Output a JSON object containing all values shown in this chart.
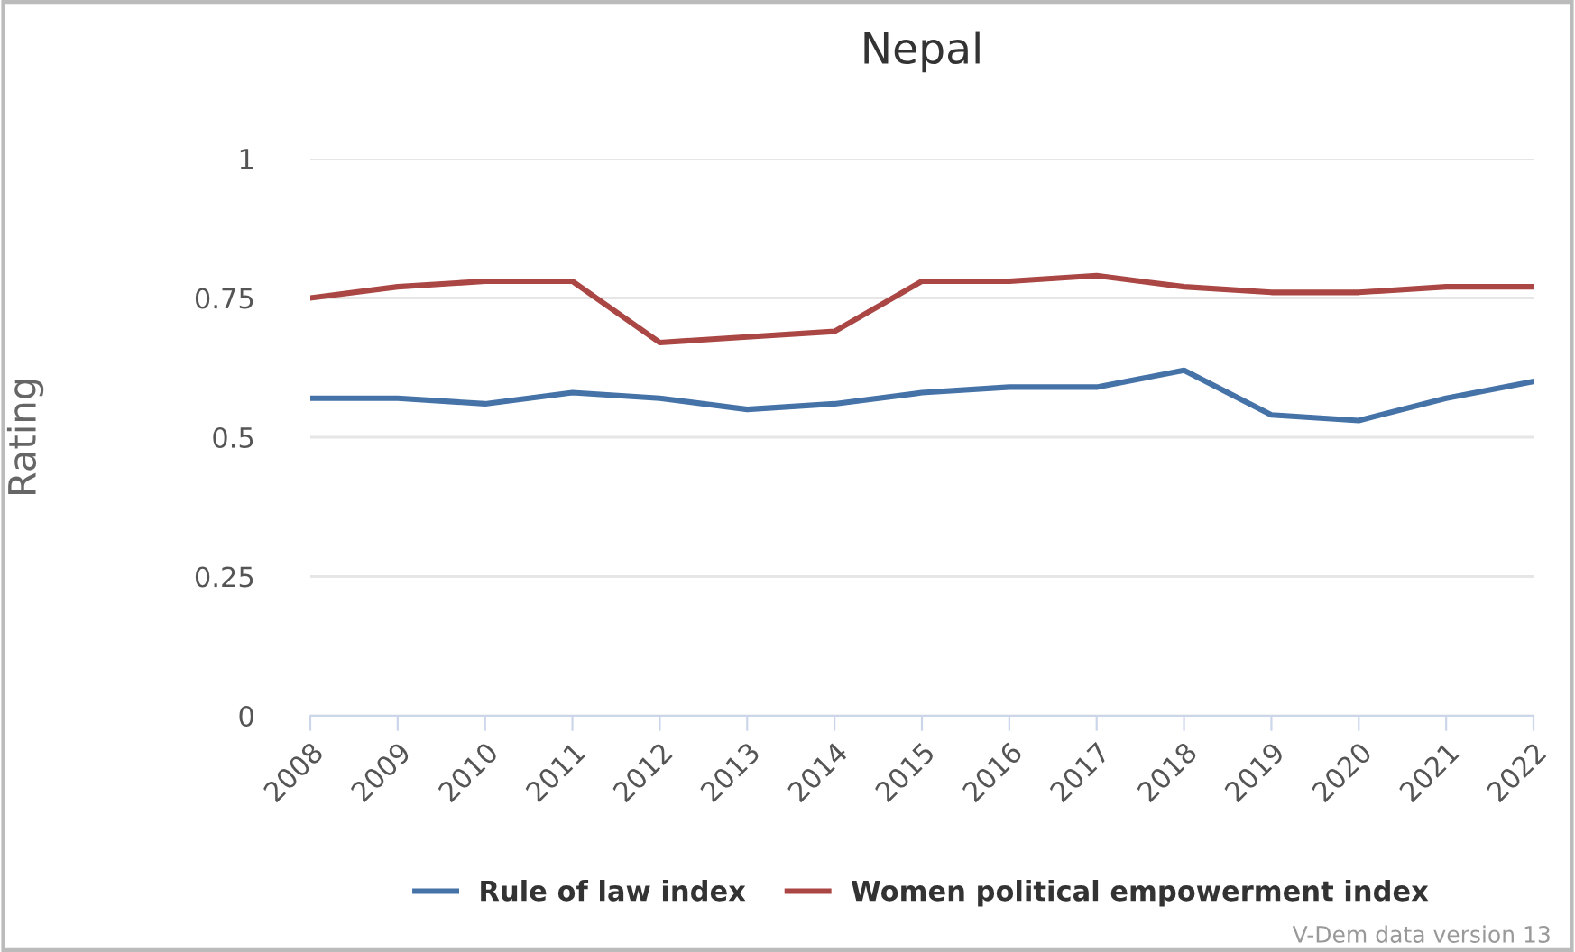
{
  "chart_data": {
    "type": "line",
    "title": "Nepal",
    "ylabel": "Rating",
    "x": [
      2008,
      2009,
      2010,
      2011,
      2012,
      2013,
      2014,
      2015,
      2016,
      2017,
      2018,
      2019,
      2020,
      2021,
      2022
    ],
    "xlim": [
      2008,
      2022
    ],
    "xticks": [
      2008,
      2009,
      2010,
      2011,
      2012,
      2013,
      2014,
      2015,
      2016,
      2017,
      2018,
      2019,
      2020,
      2021,
      2022
    ],
    "ylim": [
      0,
      1
    ],
    "yticks": [
      0,
      0.25,
      0.5,
      0.75,
      1
    ],
    "grid": "y",
    "legend": "bottom",
    "marker": "none",
    "line_style": "solid",
    "series": [
      {
        "name": "Rule of law index",
        "color": "#4572a7",
        "values": [
          0.57,
          0.57,
          0.56,
          0.58,
          0.57,
          0.55,
          0.56,
          0.58,
          0.59,
          0.59,
          0.62,
          0.54,
          0.53,
          0.57,
          0.6
        ]
      },
      {
        "name": "Women political empowerment index",
        "color": "#aa4643",
        "values": [
          0.75,
          0.77,
          0.78,
          0.78,
          0.67,
          0.68,
          0.69,
          0.78,
          0.78,
          0.79,
          0.77,
          0.76,
          0.76,
          0.77,
          0.77
        ]
      }
    ],
    "annotations": [
      "V-Dem data version 13"
    ]
  }
}
